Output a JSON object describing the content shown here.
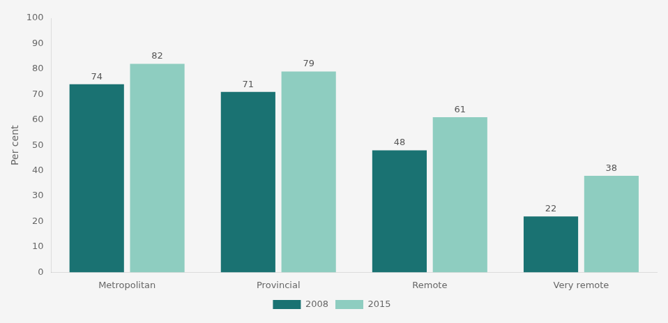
{
  "chart_data": {
    "type": "bar",
    "categories": [
      "Metropolitan",
      "Provincial",
      "Remote",
      "Very remote"
    ],
    "series": [
      {
        "name": "2008",
        "color": "#1a7272",
        "values": [
          74,
          71,
          48,
          22
        ]
      },
      {
        "name": "2015",
        "color": "#8ecdc0",
        "values": [
          82,
          79,
          61,
          38
        ]
      }
    ],
    "ylabel": "Per cent",
    "ylim": [
      0,
      100
    ],
    "yticks": [
      0,
      10,
      20,
      30,
      40,
      50,
      60,
      70,
      80,
      90,
      100
    ],
    "grid": false,
    "legend": "bottom",
    "data_labels": true
  }
}
